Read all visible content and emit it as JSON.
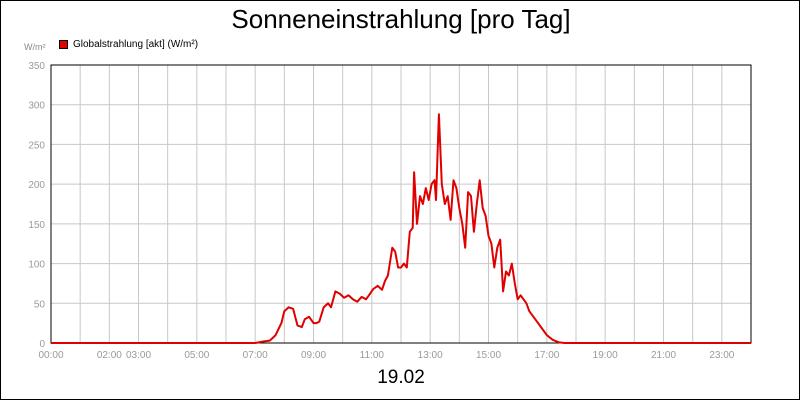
{
  "chart_data": {
    "type": "line",
    "title": "Sonneneinstrahlung [pro Tag]",
    "ylabel": "W/m²",
    "xlabel": "19.02",
    "ylim": [
      0,
      350
    ],
    "xlim": [
      0,
      24
    ],
    "grid": true,
    "legend_position": "top-left",
    "y_ticks": [
      "0",
      "50",
      "100",
      "150",
      "200",
      "250",
      "300",
      "350"
    ],
    "x_ticks": [
      {
        "h": 0,
        "label": "00:00"
      },
      {
        "h": 2,
        "label": "02:00"
      },
      {
        "h": 3,
        "label": "03:00"
      },
      {
        "h": 5,
        "label": "05:00"
      },
      {
        "h": 7,
        "label": "07:00"
      },
      {
        "h": 9,
        "label": "09:00"
      },
      {
        "h": 11,
        "label": "11:00"
      },
      {
        "h": 13,
        "label": "13:00"
      },
      {
        "h": 15,
        "label": "15:00"
      },
      {
        "h": 17,
        "label": "17:00"
      },
      {
        "h": 19,
        "label": "19:00"
      },
      {
        "h": 21,
        "label": "21:00"
      },
      {
        "h": 23,
        "label": "23:00"
      }
    ],
    "series": [
      {
        "name": "Globalstrahlung [akt] (W/m²)",
        "color": "#e00000",
        "x": [
          0.0,
          7.0,
          7.3,
          7.5,
          7.7,
          7.9,
          8.0,
          8.15,
          8.3,
          8.45,
          8.6,
          8.7,
          8.85,
          9.0,
          9.1,
          9.2,
          9.35,
          9.5,
          9.6,
          9.75,
          9.9,
          10.05,
          10.2,
          10.35,
          10.5,
          10.65,
          10.8,
          10.9,
          11.05,
          11.2,
          11.35,
          11.45,
          11.55,
          11.7,
          11.8,
          11.9,
          12.0,
          12.1,
          12.2,
          12.3,
          12.4,
          12.45,
          12.55,
          12.65,
          12.75,
          12.85,
          12.95,
          13.05,
          13.15,
          13.2,
          13.3,
          13.4,
          13.5,
          13.6,
          13.7,
          13.8,
          13.9,
          14.0,
          14.1,
          14.2,
          14.3,
          14.4,
          14.5,
          14.6,
          14.7,
          14.8,
          14.9,
          15.0,
          15.1,
          15.2,
          15.3,
          15.4,
          15.5,
          15.6,
          15.7,
          15.8,
          15.9,
          16.0,
          16.1,
          16.2,
          16.3,
          16.4,
          16.6,
          16.8,
          17.0,
          17.2,
          17.4,
          17.6,
          17.8,
          18.0,
          18.2,
          18.4,
          24.0
        ],
        "values": [
          0,
          0,
          2,
          3,
          10,
          25,
          40,
          45,
          43,
          22,
          20,
          30,
          33,
          25,
          25,
          27,
          45,
          50,
          45,
          65,
          62,
          57,
          60,
          55,
          52,
          58,
          55,
          60,
          68,
          72,
          67,
          78,
          85,
          120,
          115,
          95,
          95,
          100,
          95,
          140,
          145,
          215,
          150,
          185,
          175,
          195,
          180,
          200,
          205,
          180,
          288,
          200,
          175,
          185,
          155,
          205,
          195,
          170,
          150,
          120,
          190,
          185,
          140,
          175,
          205,
          170,
          160,
          135,
          125,
          95,
          120,
          130,
          65,
          90,
          85,
          100,
          75,
          55,
          60,
          55,
          50,
          40,
          30,
          20,
          10,
          4,
          1,
          0,
          0,
          0,
          0,
          0,
          0
        ]
      }
    ]
  }
}
